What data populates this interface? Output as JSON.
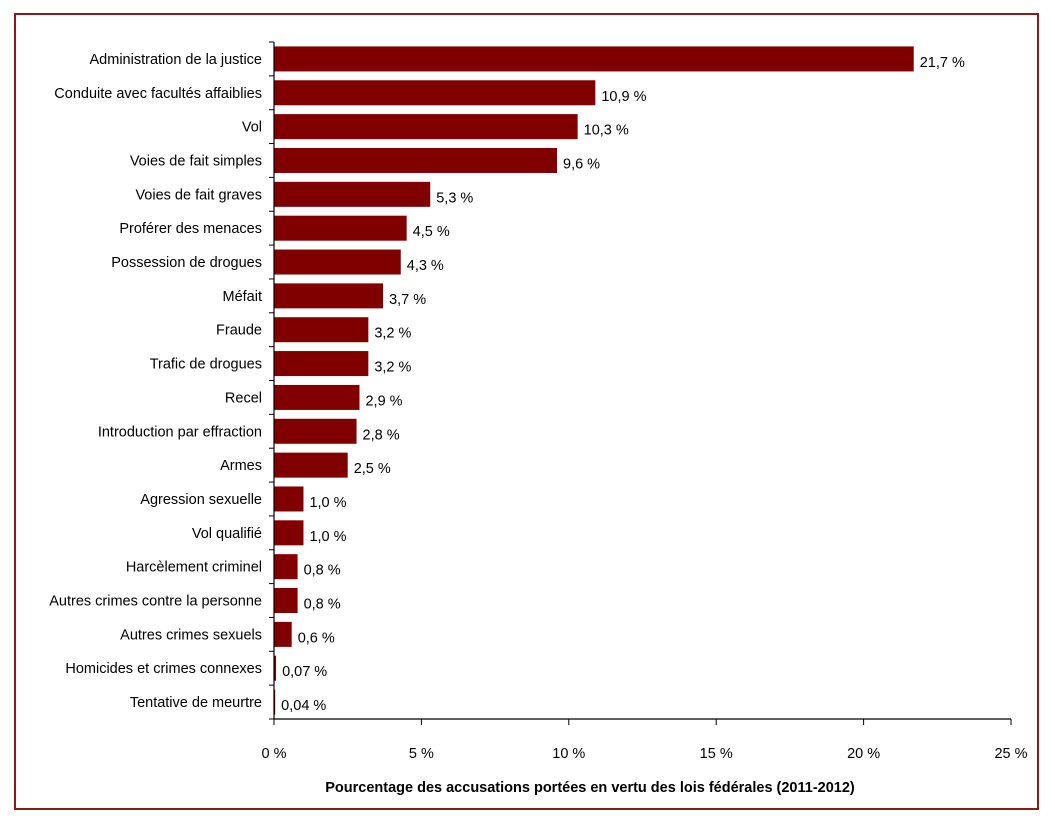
{
  "chart_data": {
    "type": "bar",
    "orientation": "horizontal",
    "categories": [
      "Administration de la justice",
      "Conduite avec facultés affaiblies",
      "Vol",
      "Voies de fait simples",
      "Voies de fait graves",
      "Proférer des menaces",
      "Possession de drogues",
      "Méfait",
      "Fraude",
      "Trafic de drogues",
      "Recel",
      "Introduction par effraction",
      "Armes",
      "Agression sexuelle",
      "Vol qualifié",
      "Harcèlement criminel",
      "Autres crimes contre la personne",
      "Autres crimes sexuels",
      "Homicides et crimes connexes",
      "Tentative de meurtre"
    ],
    "values": [
      21.7,
      10.9,
      10.3,
      9.6,
      5.3,
      4.5,
      4.3,
      3.7,
      3.2,
      3.2,
      2.9,
      2.8,
      2.5,
      1.0,
      1.0,
      0.8,
      0.8,
      0.6,
      0.07,
      0.04
    ],
    "value_labels": [
      "21,7 %",
      "10,9 %",
      "10,3 %",
      "9,6 %",
      "5,3 %",
      "4,5 %",
      "4,3 %",
      "3,7 %",
      "3,2 %",
      "3,2 %",
      "2,9 %",
      "2,8 %",
      "2,5 %",
      "1,0 %",
      "1,0 %",
      "0,8 %",
      "0,8 %",
      "0,6 %",
      "0,07 %",
      "0,04 %"
    ],
    "xlim": [
      0,
      25
    ],
    "xticks": [
      0,
      5,
      10,
      15,
      20,
      25
    ],
    "xtick_labels": [
      "0 %",
      "5 %",
      "10 %",
      "15 %",
      "20 %",
      "25 %"
    ],
    "xlabel": "Pourcentage des accusations portées en vertu des lois fédérales (2011-2012)",
    "ylabel": "",
    "title": "",
    "grid": false,
    "legend": "none",
    "bar_color": "#800000",
    "frame_color": "#8b1a1a"
  }
}
